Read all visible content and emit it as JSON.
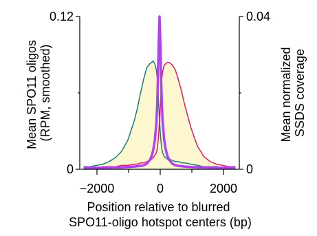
{
  "chart_data": {
    "type": "area",
    "title": "",
    "x": [
      -2400,
      -2200,
      -2000,
      -1800,
      -1600,
      -1400,
      -1200,
      -1000,
      -800,
      -700,
      -600,
      -500,
      -400,
      -300,
      -250,
      -200,
      -150,
      -100,
      -75,
      -50,
      -25,
      0,
      25,
      50,
      75,
      100,
      150,
      200,
      250,
      300,
      400,
      500,
      600,
      700,
      800,
      1000,
      1200,
      1400,
      1600,
      1800,
      2000,
      2200,
      2400
    ],
    "series": [
      {
        "axis": "left",
        "color": "#1a7a7a",
        "fill": "#fdf7cf",
        "values": [
          0.002,
          0.002,
          0.003,
          0.004,
          0.006,
          0.009,
          0.014,
          0.023,
          0.038,
          0.048,
          0.06,
          0.071,
          0.08,
          0.083,
          0.084,
          0.085,
          0.083,
          0.078,
          0.072,
          0.063,
          0.05,
          0.038,
          0.028,
          0.021,
          0.016,
          0.013,
          0.01,
          0.009,
          0.008,
          0.008,
          0.007,
          0.006,
          0.006,
          0.005,
          0.005,
          0.004,
          0.003,
          0.002,
          0.002,
          0.002,
          0.001,
          0.001,
          0.001
        ]
      },
      {
        "axis": "left",
        "color": "#e0186e",
        "fill": "#fdf7cf",
        "values": [
          0.001,
          0.001,
          0.001,
          0.002,
          0.002,
          0.002,
          0.003,
          0.003,
          0.004,
          0.004,
          0.005,
          0.005,
          0.006,
          0.007,
          0.008,
          0.009,
          0.011,
          0.013,
          0.016,
          0.021,
          0.028,
          0.038,
          0.05,
          0.063,
          0.072,
          0.077,
          0.082,
          0.083,
          0.084,
          0.084,
          0.082,
          0.078,
          0.07,
          0.061,
          0.05,
          0.032,
          0.018,
          0.01,
          0.006,
          0.004,
          0.003,
          0.002,
          0.002
        ]
      },
      {
        "axis": "right",
        "color": "#b040f0",
        "values": [
          0.0004,
          0.0004,
          0.0004,
          0.0004,
          0.0004,
          0.0005,
          0.0005,
          0.0006,
          0.0007,
          0.0008,
          0.0009,
          0.001,
          0.0015,
          0.0025,
          0.0035,
          0.005,
          0.0075,
          0.012,
          0.017,
          0.024,
          0.033,
          0.04,
          0.033,
          0.024,
          0.017,
          0.012,
          0.0075,
          0.005,
          0.0035,
          0.0025,
          0.0015,
          0.001,
          0.0009,
          0.0008,
          0.0007,
          0.0006,
          0.0005,
          0.0005,
          0.0004,
          0.0004,
          0.0004,
          0.0004,
          0.0004
        ]
      }
    ],
    "xlabel": "Position relative to blurred\nSPO11-oligo hotspot centers (bp)",
    "ylabel_left": "Mean SPO11 oligos\n(RPM, smoothed)",
    "ylabel_right": "Mean normalized\nSSDS coverage",
    "xlim": [
      -2500,
      2500
    ],
    "ylim_left": [
      0,
      0.12
    ],
    "ylim_right": [
      0,
      0.04
    ],
    "xticks": [
      -2000,
      0,
      2000
    ],
    "xtick_labels": [
      "−2000",
      "0",
      "2000"
    ],
    "yticks_left": [
      0,
      0.12
    ],
    "ytick_labels_left": [
      "0",
      "0.12"
    ],
    "yticks_right": [
      0,
      0.04
    ],
    "ytick_labels_right": [
      "0",
      "0.04"
    ],
    "grid": false,
    "legend": "none"
  }
}
